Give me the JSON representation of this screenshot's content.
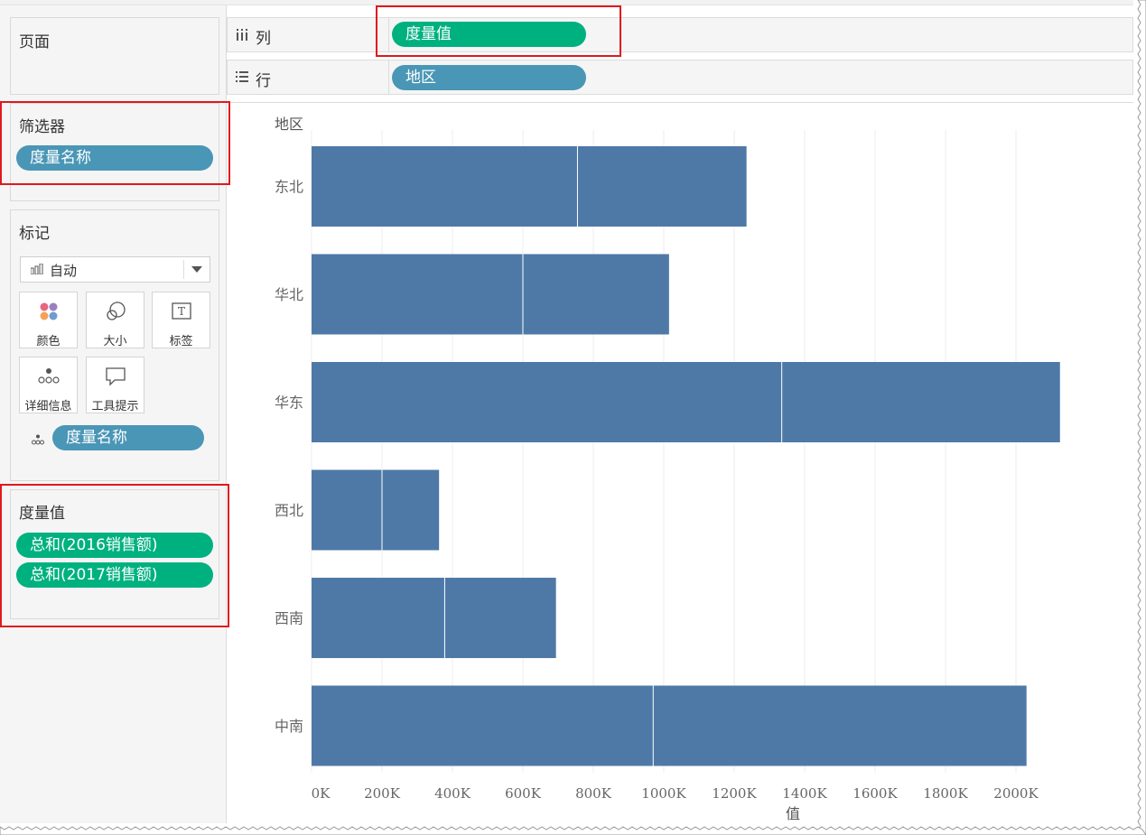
{
  "shelves": {
    "pages_title": "页面",
    "columns_label": "列",
    "rows_label": "行",
    "columns_pill": "度量值",
    "rows_pill": "地区"
  },
  "filters": {
    "title": "筛选器",
    "pill": "度量名称"
  },
  "marks": {
    "title": "标记",
    "type_value": "自动",
    "buttons": [
      "颜色",
      "大小",
      "标签",
      "详细信息",
      "工具提示"
    ],
    "detail_pill": "度量名称"
  },
  "measure_values": {
    "title": "度量值",
    "pills": [
      "总和(2016销售额)",
      "总和(2017销售额)"
    ]
  },
  "colors": {
    "bar": "#4e79a7",
    "pill_blue": "#4a96b6",
    "pill_green": "#00b180",
    "highlight": "#e0191d"
  },
  "chart_data": {
    "type": "bar",
    "orientation": "horizontal",
    "stacked": true,
    "row_header": "地区",
    "xlabel": "值",
    "categories": [
      "东北",
      "华北",
      "华东",
      "西北",
      "西南",
      "中南"
    ],
    "series": [
      {
        "values": [
          755,
          600,
          1335,
          200,
          378,
          970
        ]
      },
      {
        "values": [
          480,
          415,
          790,
          162,
          316,
          1060
        ]
      }
    ],
    "unit": "K",
    "xlim": [
      0,
      2100
    ],
    "xticks": [
      "0K",
      "200K",
      "400K",
      "600K",
      "800K",
      "1000K",
      "1200K",
      "1400K",
      "1600K",
      "1800K",
      "2000K"
    ],
    "xtick_values": [
      0,
      200,
      400,
      600,
      800,
      1000,
      1200,
      1400,
      1600,
      1800,
      2000
    ],
    "grid": true
  }
}
